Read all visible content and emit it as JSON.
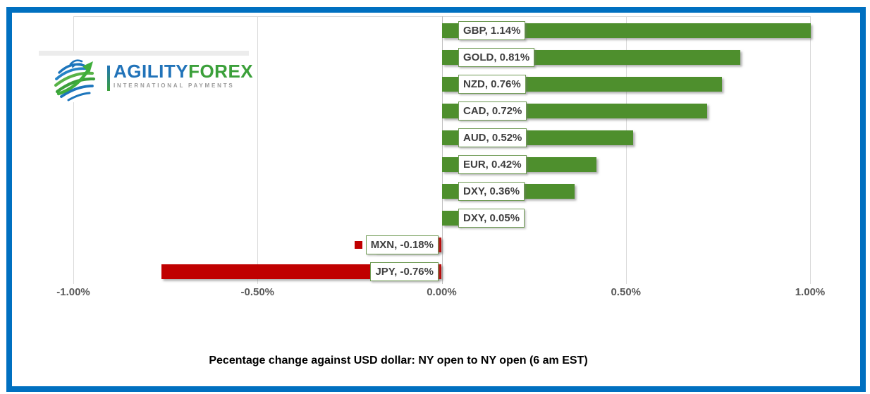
{
  "frame": {
    "border_color": "#0070C0"
  },
  "logo": {
    "brand_primary": "AGILITY",
    "brand_secondary": "FOREX",
    "tagline": "INTERNATIONAL PAYMENTS",
    "primary_color": "#2173B9",
    "secondary_color": "#3BA03A",
    "tagline_color": "#9B9B9B"
  },
  "chart_data": {
    "type": "bar",
    "orientation": "horizontal",
    "categories": [
      "GBP",
      "GOLD",
      "NZD",
      "CAD",
      "AUD",
      "EUR",
      "DXY",
      "DXY",
      "MXN",
      "JPY"
    ],
    "values": [
      1.14,
      0.81,
      0.76,
      0.72,
      0.52,
      0.42,
      0.36,
      0.05,
      -0.18,
      -0.76
    ],
    "data_labels": [
      "GBP, 1.14%",
      "GOLD, 0.81%",
      "NZD, 0.76%",
      "CAD, 0.72%",
      "AUD, 0.52%",
      "EUR, 0.42%",
      "DXY, 0.36%",
      "DXY, 0.05%",
      "MXN, -0.18%",
      "JPY, -0.76%"
    ],
    "units": "percent",
    "x_ticks": [
      "-1.00%",
      "-0.50%",
      "0.00%",
      "0.50%",
      "1.00%"
    ],
    "x_tick_values": [
      -1.0,
      -0.5,
      0.0,
      0.5,
      1.0
    ],
    "xlim": [
      -1.0,
      1.0
    ],
    "grid": true,
    "legend_position": "none",
    "bar_colors": {
      "positive": "#4E8F2D",
      "negative": "#C00000"
    },
    "legend_key_index": 8,
    "caption": "Pecentage change against USD dollar: NY open to NY open  (6 am EST)"
  }
}
